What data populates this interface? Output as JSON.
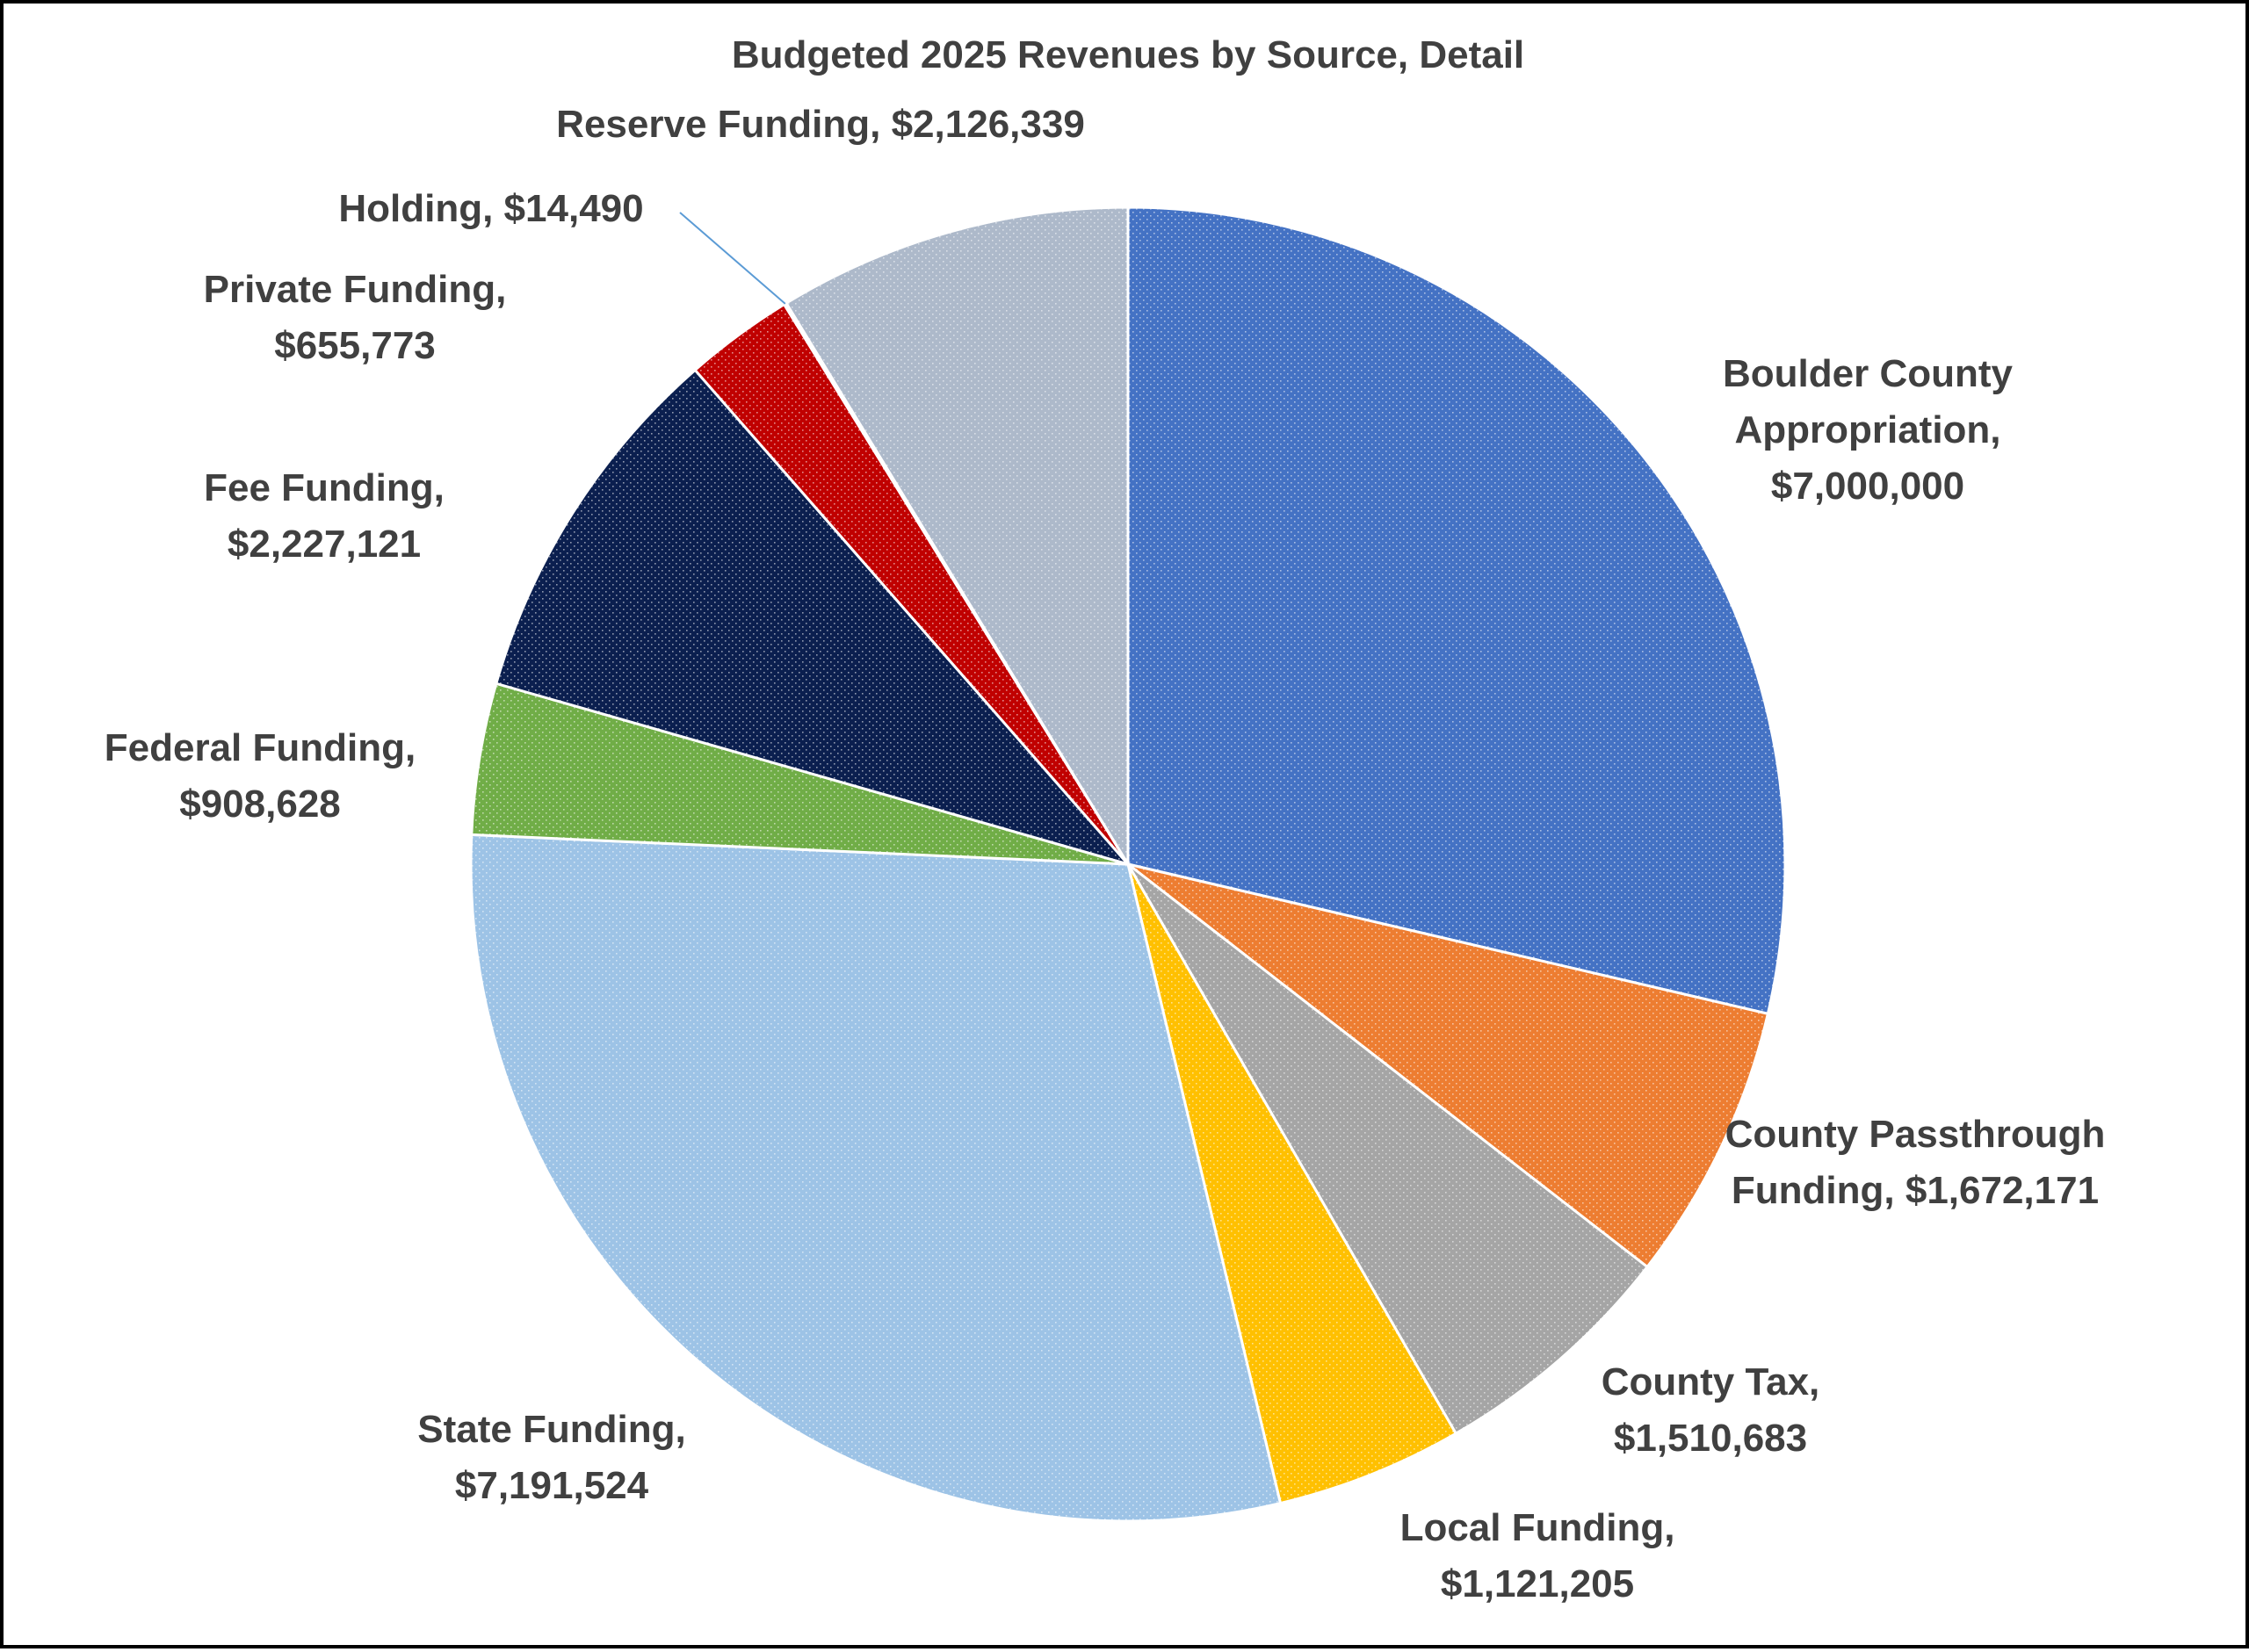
{
  "chart_data": {
    "type": "pie",
    "title": "Budgeted 2025 Revenues by Source, Detail",
    "slices": [
      {
        "name": "Boulder County Appropriation",
        "value": 7000000,
        "label_lines": [
          "Boulder County",
          "Appropriation,",
          "$7,000,000"
        ],
        "color": "#4472c4"
      },
      {
        "name": "County Passthrough Funding",
        "value": 1672171,
        "label_lines": [
          "County Passthrough",
          "Funding,  $1,672,171"
        ],
        "color": "#ed7d31"
      },
      {
        "name": "County Tax",
        "value": 1510683,
        "label_lines": [
          "County Tax,",
          "$1,510,683"
        ],
        "color": "#a5a5a5"
      },
      {
        "name": "Local Funding",
        "value": 1121205,
        "label_lines": [
          "Local Funding,",
          "$1,121,205"
        ],
        "color": "#ffc000"
      },
      {
        "name": "State Funding",
        "value": 7191524,
        "label_lines": [
          "State Funding,",
          "$7,191,524"
        ],
        "color": "#9dc3e6"
      },
      {
        "name": "Federal Funding",
        "value": 908628,
        "label_lines": [
          "Federal Funding,",
          "$908,628"
        ],
        "color": "#70ad47"
      },
      {
        "name": "Fee Funding",
        "value": 2227121,
        "label_lines": [
          "Fee Funding,",
          "$2,227,121"
        ],
        "color": "#0b1f4f"
      },
      {
        "name": "Private Funding",
        "value": 655773,
        "label_lines": [
          "Private Funding,",
          "$655,773"
        ],
        "color": "#c00000"
      },
      {
        "name": "Holding",
        "value": 14490,
        "label_lines": [
          "Holding,  $14,490"
        ],
        "color": "#5b9bd5"
      },
      {
        "name": "Reserve Funding",
        "value": 2126339,
        "label_lines": [
          "Reserve Funding,  $2,126,339"
        ],
        "color": "#adb9ca"
      }
    ],
    "legend": "none",
    "data_labels": "outside"
  }
}
